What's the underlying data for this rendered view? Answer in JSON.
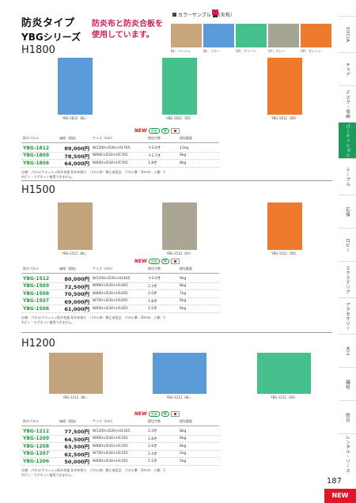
{
  "header": {
    "title": "防炎タイプ",
    "subtitle": "YBGシリーズ",
    "note_line1": "防炎布と防炎合板を",
    "note_line2": "使用しています。"
  },
  "color_sample": {
    "label": "カラーサンプル（防炎布）",
    "swatches": [
      {
        "code": "BL：ベージュ",
        "color": "#c9a57e"
      },
      {
        "code": "BL：ブルー",
        "color": "#5b9bd8"
      },
      {
        "code": "GR：グリーン",
        "color": "#46c18e"
      },
      {
        "code": "GY：グレー",
        "color": "#a6a593"
      },
      {
        "code": "OR：オレンジ",
        "color": "#ee7a2e"
      }
    ]
  },
  "sections": {
    "h1800": {
      "heading": "H1800",
      "panels": [
        {
          "caption": "YBG-1812（BL）",
          "color": "#5b9bd8"
        },
        {
          "caption": "YBG-1812（GR）",
          "color": "#46c18e"
        },
        {
          "caption": "YBG-1812（OR）",
          "color": "#ee7a2e"
        }
      ],
      "rows": [
        {
          "model": "YBG-1812",
          "price": "89,000円",
          "size": "W1200×D30×H1765",
          "load": "＊3.0才",
          "weight": "11kg"
        },
        {
          "model": "YBG-1809",
          "price": "78,500円",
          "size": "W900×D30×H1765",
          "load": "＊2.7才",
          "weight": "9kg"
        },
        {
          "model": "YBG-1806",
          "price": "64,000円",
          "size": "W600×D30×H1765",
          "load": "1.8才",
          "weight": "8kg"
        }
      ]
    },
    "h1500": {
      "heading": "H1500",
      "panels": [
        {
          "caption": "YBG-1512（BL）",
          "color": "#c3a47d"
        },
        {
          "caption": "YBG-1512（GY）",
          "color": "#aaa693"
        },
        {
          "caption": "YBG-1512（OR）",
          "color": "#ee7a2e"
        }
      ],
      "rows": [
        {
          "model": "YBG-1512",
          "price": "80,000円",
          "size": "W1200×D30×H1465",
          "load": "＊3.0才",
          "weight": "9kg"
        },
        {
          "model": "YBG-1509",
          "price": "72,500円",
          "size": "W900×D30×H1465",
          "load": "2.3才",
          "weight": "8kg"
        },
        {
          "model": "YBG-1508",
          "price": "70,500円",
          "size": "W800×D30×H1465",
          "load": "2.0才",
          "weight": "7kg"
        },
        {
          "model": "YBG-1507",
          "price": "69,000円",
          "size": "W700×D30×H1465",
          "load": "1.8才",
          "weight": "6kg"
        },
        {
          "model": "YBG-1506",
          "price": "61,000円",
          "size": "W600×D30×H1465",
          "load": "1.5才",
          "weight": "6kg"
        }
      ]
    },
    "h1200": {
      "heading": "H1200",
      "panels": [
        {
          "caption": "YBG-1212（BL）",
          "color": "#c3a47d"
        },
        {
          "caption": "YBG-1212（BL）",
          "color": "#5b9bd8"
        },
        {
          "caption": "YBG-1212（GR）",
          "color": "#46c18e"
        }
      ],
      "rows": [
        {
          "model": "YBG-1212",
          "price": "77,500円",
          "size": "W1200×D30×H1165",
          "load": "2.4才",
          "weight": "8kg"
        },
        {
          "model": "YBG-1209",
          "price": "64,500円",
          "size": "W900×D30×H1165",
          "load": "1.8才",
          "weight": "6kg"
        },
        {
          "model": "YBG-1208",
          "price": "63,500円",
          "size": "W800×D30×H1165",
          "load": "1.6才",
          "weight": "6kg"
        },
        {
          "model": "YBG-1207",
          "price": "62,500円",
          "size": "W700×D30×H1165",
          "load": "1.4才",
          "weight": "5kg"
        },
        {
          "model": "YBG-1206",
          "price": "50,000円",
          "size": "W600×D30×H1165",
          "load": "1.2才",
          "weight": "5kg"
        }
      ]
    }
  },
  "spec_headers": {
    "model": "防炎パネル",
    "price": "価格（税抜）",
    "size": "サイズ（mm）",
    "load": "梱包才数",
    "weight": "梱包重量"
  },
  "spec_note_1": "仕様：パネル/フラッシュ防炎合板 防炎布張り　パネル枠：脚と成型品　パネル厚：30mm　入数：1",
  "spec_note_2": "※ピン・マグネット使用できません。",
  "badges": {
    "new": "NEW",
    "box": "完成",
    "q": "Q"
  },
  "side_tabs": [
    "SOCIA",
    "チェア",
    "デスク・収納",
    "パーティション",
    "テーブル",
    "応接",
    "ロビー",
    "エクステリア",
    "アクセサリー",
    "木工",
    "福祉",
    "防災",
    "レンタル・リース"
  ],
  "page_number": "187",
  "corner_badge": "NEW"
}
